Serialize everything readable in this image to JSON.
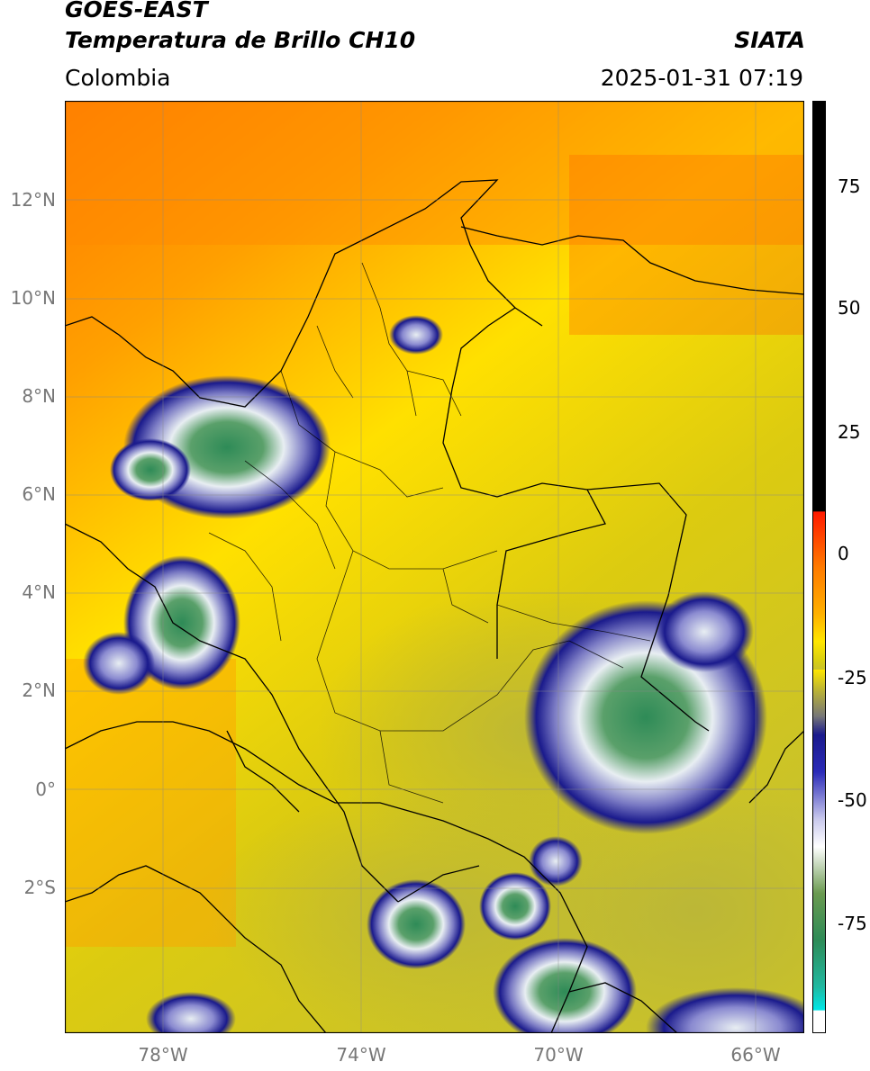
{
  "header": {
    "satellite": "GOES-EAST",
    "product": "Temperatura de Brillo CH10",
    "organization": "SIATA",
    "region": "Colombia",
    "datetime": "2025-01-31 07:19"
  },
  "map": {
    "projection": "lat-lon",
    "lon_range": [
      -80,
      -65
    ],
    "lat_range": [
      -5.1,
      14
    ],
    "lat_labels": [
      "12°N",
      "10°N",
      "8°N",
      "6°N",
      "4°N",
      "2°N",
      "0°",
      "2°S"
    ],
    "lon_labels": [
      "78°W",
      "74°W",
      "70°W",
      "66°W"
    ],
    "grid": true
  },
  "colorbar": {
    "ticks": [
      "75",
      "50",
      "25",
      "0",
      "-25",
      "-50",
      "-75"
    ],
    "range": [
      -95,
      90
    ]
  },
  "colors": {
    "warm": "#ff7a00",
    "mid": "#ffd200",
    "cool": "#c8c020",
    "cold_blue": "#1a1a8c",
    "very_cold": "#2e8b57",
    "black_band": "#000000",
    "red_band": "#ff2a00",
    "cyan_band": "#00e0e0"
  }
}
